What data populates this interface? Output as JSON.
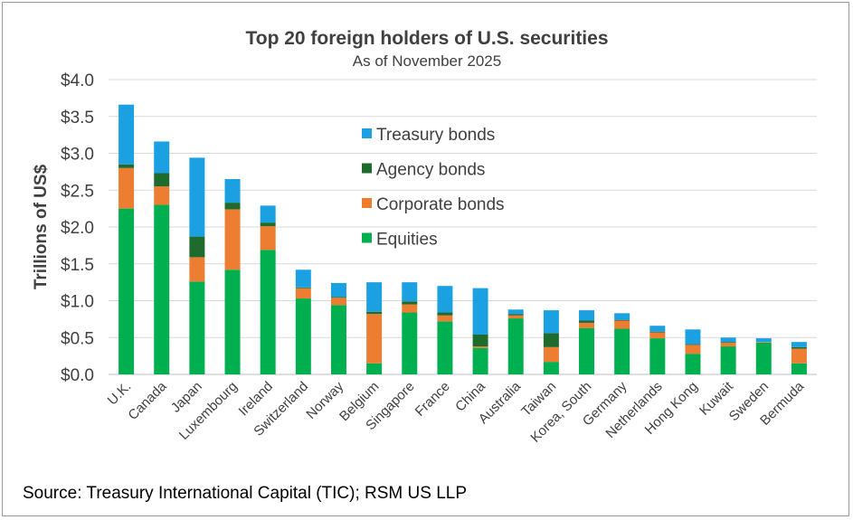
{
  "chart_data": {
    "type": "bar",
    "stacked": true,
    "title": "Top 20 foreign holders of U.S. securities",
    "subtitle": "As of November 2025",
    "xlabel": "",
    "ylabel": "Trillions of US$",
    "ylim": [
      0,
      4.0
    ],
    "yticks": [
      0,
      0.5,
      1.0,
      1.5,
      2.0,
      2.5,
      3.0,
      3.5,
      4.0
    ],
    "ytick_labels": [
      "$0.0",
      "$0.5",
      "$1.0",
      "$1.5",
      "$2.0",
      "$2.5",
      "$3.0",
      "$3.5",
      "$4.0"
    ],
    "grid": true,
    "legend_position": "top-center",
    "categories": [
      "U.K.",
      "Canada",
      "Japan",
      "Luxembourg",
      "Ireland",
      "Switzerland",
      "Norway",
      "Belgium",
      "Singapore",
      "France",
      "China",
      "Australia",
      "Taiwan",
      "Korea, South",
      "Germany",
      "Netherlands",
      "Hong Kong",
      "Kuwait",
      "Sweden",
      "Bermuda"
    ],
    "series": [
      {
        "name": "Equities",
        "color": "#00b050",
        "values": [
          2.25,
          2.3,
          1.26,
          1.42,
          1.69,
          1.03,
          0.94,
          0.15,
          0.84,
          0.72,
          0.36,
          0.76,
          0.17,
          0.63,
          0.62,
          0.49,
          0.28,
          0.38,
          0.43,
          0.15
        ]
      },
      {
        "name": "Corporate bonds",
        "color": "#ed7d31",
        "values": [
          0.55,
          0.25,
          0.33,
          0.82,
          0.32,
          0.14,
          0.1,
          0.67,
          0.11,
          0.08,
          0.02,
          0.04,
          0.2,
          0.07,
          0.11,
          0.08,
          0.12,
          0.05,
          0.01,
          0.2
        ]
      },
      {
        "name": "Agency bonds",
        "color": "#1f6b2e",
        "values": [
          0.05,
          0.18,
          0.28,
          0.09,
          0.05,
          0.01,
          0.01,
          0.03,
          0.04,
          0.04,
          0.16,
          0.02,
          0.19,
          0.03,
          0.01,
          0.01,
          0.01,
          0.01,
          0.0,
          0.02
        ]
      },
      {
        "name": "Treasury bonds",
        "color": "#1ba1e2",
        "values": [
          0.81,
          0.43,
          1.07,
          0.32,
          0.23,
          0.24,
          0.19,
          0.4,
          0.26,
          0.36,
          0.63,
          0.06,
          0.31,
          0.14,
          0.09,
          0.08,
          0.2,
          0.06,
          0.05,
          0.07
        ]
      }
    ],
    "legend": [
      "Treasury bonds",
      "Agency bonds",
      "Corporate bonds",
      "Equities"
    ]
  },
  "source": "Source: Treasury International Capital (TIC); RSM US LLP"
}
